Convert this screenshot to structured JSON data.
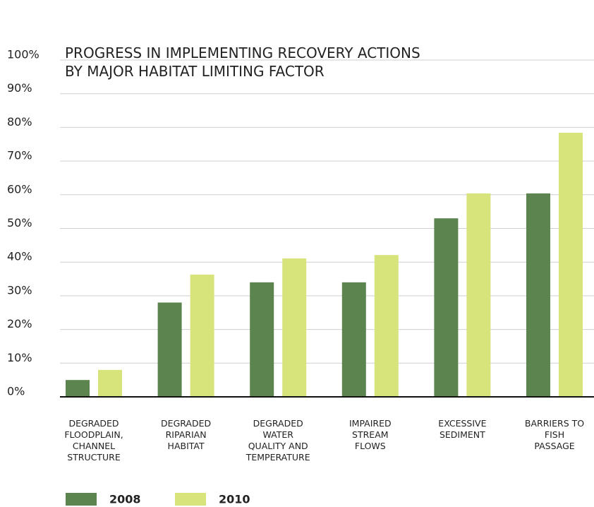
{
  "chart_data": {
    "type": "bar",
    "title": "PROGRESS IN IMPLEMENTING RECOVERY ACTIONS\nBY MAJOR HABITAT LIMITING FACTOR",
    "categories": [
      "DEGRADED\nFLOODPLAIN,\nCHANNEL\nSTRUCTURE",
      "DEGRADED\nRIPARIAN\nHABITAT",
      "DEGRADED\nWATER\nQUALITY AND\nTEMPERATURE",
      "IMPAIRED\nSTREAM\nFLOWS",
      "EXCESSIVE\nSEDIMENT",
      "BARRIERS TO\nFISH\nPASSAGE"
    ],
    "series": [
      {
        "name": "2008",
        "color": "#5b844f",
        "values": [
          5,
          28,
          34,
          34,
          53,
          60.4
        ]
      },
      {
        "name": "2010",
        "color": "#d7e37b",
        "values": [
          8,
          36.3,
          41.1,
          42.1,
          60.4,
          78.4
        ]
      }
    ],
    "ylim": [
      0,
      100
    ],
    "yticks": [
      {
        "value": 0,
        "label": "0%"
      },
      {
        "value": 10,
        "label": "10%"
      },
      {
        "value": 20,
        "label": "20%"
      },
      {
        "value": 30,
        "label": "30%"
      },
      {
        "value": 40,
        "label": "40%"
      },
      {
        "value": 50,
        "label": "50%"
      },
      {
        "value": 60,
        "label": "60%"
      },
      {
        "value": 70,
        "label": "70%"
      },
      {
        "value": 80,
        "label": "80%"
      },
      {
        "value": 90,
        "label": "90%"
      },
      {
        "value": 100,
        "label": "100%"
      }
    ],
    "grid": true
  }
}
